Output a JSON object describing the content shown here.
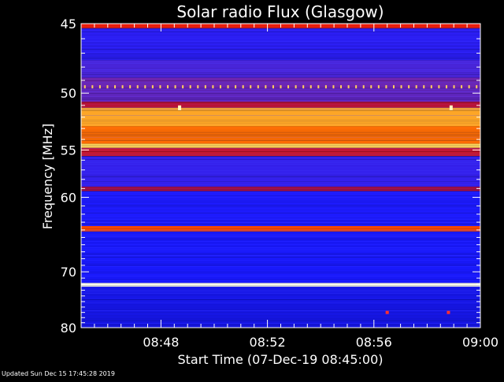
{
  "chart_data": {
    "type": "heatmap",
    "title": "Solar radio Flux (Glasgow)",
    "xlabel": "Start Time (07-Dec-19 08:45:00)",
    "ylabel": "Frequency [MHz]",
    "xlim_minutes": [
      0,
      15
    ],
    "ylim_mhz": [
      45,
      80
    ],
    "x_ticks": [
      {
        "minute": 3,
        "label": "08:48"
      },
      {
        "minute": 7,
        "label": "08:52"
      },
      {
        "minute": 11,
        "label": "08:56"
      },
      {
        "minute": 15,
        "label": "09:00"
      }
    ],
    "y_ticks": [
      {
        "mhz": 45,
        "label": "45"
      },
      {
        "mhz": 50,
        "label": "50"
      },
      {
        "mhz": 55,
        "label": "55"
      },
      {
        "mhz": 60,
        "label": "60"
      },
      {
        "mhz": 70,
        "label": "70"
      },
      {
        "mhz": 80,
        "label": "80"
      }
    ],
    "frequency_scale": "reciprocal",
    "colormap": [
      "#000060",
      "#1a1aff",
      "#5a2ad0",
      "#b01040",
      "#ff2200",
      "#ff6a00",
      "#ffd040",
      "#fffff0"
    ],
    "bands": [
      {
        "from_mhz": 45.0,
        "to_mhz": 45.3,
        "level": 0.55
      },
      {
        "from_mhz": 45.3,
        "to_mhz": 47.5,
        "level": 0.18
      },
      {
        "from_mhz": 47.5,
        "to_mhz": 48.8,
        "level": 0.25
      },
      {
        "from_mhz": 48.8,
        "to_mhz": 49.6,
        "level": 0.32
      },
      {
        "from_mhz": 49.6,
        "to_mhz": 50.7,
        "level": 0.3
      },
      {
        "from_mhz": 50.7,
        "to_mhz": 51.2,
        "level": 0.45
      },
      {
        "from_mhz": 51.2,
        "to_mhz": 52.8,
        "level": 0.8
      },
      {
        "from_mhz": 52.8,
        "to_mhz": 54.4,
        "level": 0.72
      },
      {
        "from_mhz": 54.4,
        "to_mhz": 54.8,
        "level": 0.88
      },
      {
        "from_mhz": 54.8,
        "to_mhz": 55.6,
        "level": 0.48
      },
      {
        "from_mhz": 55.6,
        "to_mhz": 58.8,
        "level": 0.2
      },
      {
        "from_mhz": 58.8,
        "to_mhz": 59.3,
        "level": 0.42
      },
      {
        "from_mhz": 59.3,
        "to_mhz": 63.5,
        "level": 0.15
      },
      {
        "from_mhz": 63.5,
        "to_mhz": 64.2,
        "level": 0.65
      },
      {
        "from_mhz": 64.2,
        "to_mhz": 71.8,
        "level": 0.14
      },
      {
        "from_mhz": 71.8,
        "to_mhz": 72.4,
        "level": 1.0
      },
      {
        "from_mhz": 72.4,
        "to_mhz": 80.0,
        "level": 0.12
      }
    ],
    "dots_49_5mhz_per_minute": 3.5,
    "bright_spots": [
      {
        "minute": 3.7,
        "mhz": 51.2
      },
      {
        "minute": 13.9,
        "mhz": 51.2
      }
    ],
    "red_spots": [
      {
        "minute": 11.5,
        "mhz": 77.0
      },
      {
        "minute": 13.8,
        "mhz": 77.0
      }
    ]
  },
  "footer": {
    "updated": "Updated Sun Dec 15 17:45:28 2019"
  }
}
